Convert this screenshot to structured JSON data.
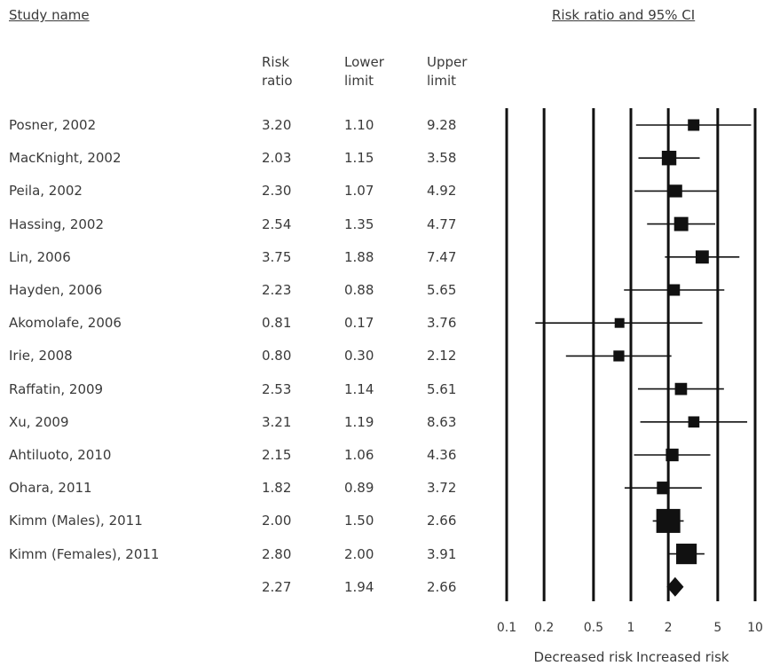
{
  "headers": {
    "study_name": "Study name",
    "ci_title": "Risk ratio and 95% CI",
    "col_rr": [
      "Risk",
      "ratio"
    ],
    "col_ll": [
      "Lower",
      "limit"
    ],
    "col_ul": [
      "Upper",
      "limit"
    ]
  },
  "chart_data": {
    "type": "forest",
    "x_scale": "log",
    "xlim": [
      0.1,
      10
    ],
    "x_ticks": [
      "0.1",
      "0.2",
      "0.5",
      "1",
      "2",
      "5",
      "10"
    ],
    "x_tick_values": [
      0.1,
      0.2,
      0.5,
      1,
      2,
      5,
      10
    ],
    "left_label": "Decreased risk",
    "right_label": "Increased risk",
    "studies": [
      {
        "name": "Posner, 2002",
        "rr": "3.20",
        "ll": "1.10",
        "ul": "9.28",
        "weight": 1
      },
      {
        "name": "MacKnight, 2002",
        "rr": "2.03",
        "ll": "1.15",
        "ul": "3.58",
        "weight": 2.2
      },
      {
        "name": "Peila, 2002",
        "rr": "2.30",
        "ll": "1.07",
        "ul": "4.92",
        "weight": 1.4
      },
      {
        "name": "Hassing, 2002",
        "rr": "2.54",
        "ll": "1.35",
        "ul": "4.77",
        "weight": 2
      },
      {
        "name": "Lin, 2006",
        "rr": "3.75",
        "ll": "1.88",
        "ul": "7.47",
        "weight": 1.6
      },
      {
        "name": "Hayden, 2006",
        "rr": "2.23",
        "ll": "0.88",
        "ul": "5.65",
        "weight": 1
      },
      {
        "name": "Akomolafe, 2006",
        "rr": "0.81",
        "ll": "0.17",
        "ul": "3.76",
        "weight": 0.5
      },
      {
        "name": "Irie, 2008",
        "rr": "0.80",
        "ll": "0.30",
        "ul": "2.12",
        "weight": 0.8
      },
      {
        "name": "Raffatin, 2009",
        "rr": "2.53",
        "ll": "1.14",
        "ul": "5.61",
        "weight": 1.2
      },
      {
        "name": "Xu, 2009",
        "rr": "3.21",
        "ll": "1.19",
        "ul": "8.63",
        "weight": 0.9
      },
      {
        "name": "Ahtiluoto, 2010",
        "rr": "2.15",
        "ll": "1.06",
        "ul": "4.36",
        "weight": 1.4
      },
      {
        "name": "Ohara, 2011",
        "rr": "1.82",
        "ll": "0.89",
        "ul": "3.72",
        "weight": 1.4
      },
      {
        "name": "Kimm (Males), 2011",
        "rr": "2.00",
        "ll": "1.50",
        "ul": "2.66",
        "weight": 9
      },
      {
        "name": "Kimm (Females), 2011",
        "rr": "2.80",
        "ll": "2.00",
        "ul": "3.91",
        "weight": 6
      }
    ],
    "summary": {
      "name": "",
      "rr": "2.27",
      "ll": "1.94",
      "ul": "2.66"
    }
  }
}
